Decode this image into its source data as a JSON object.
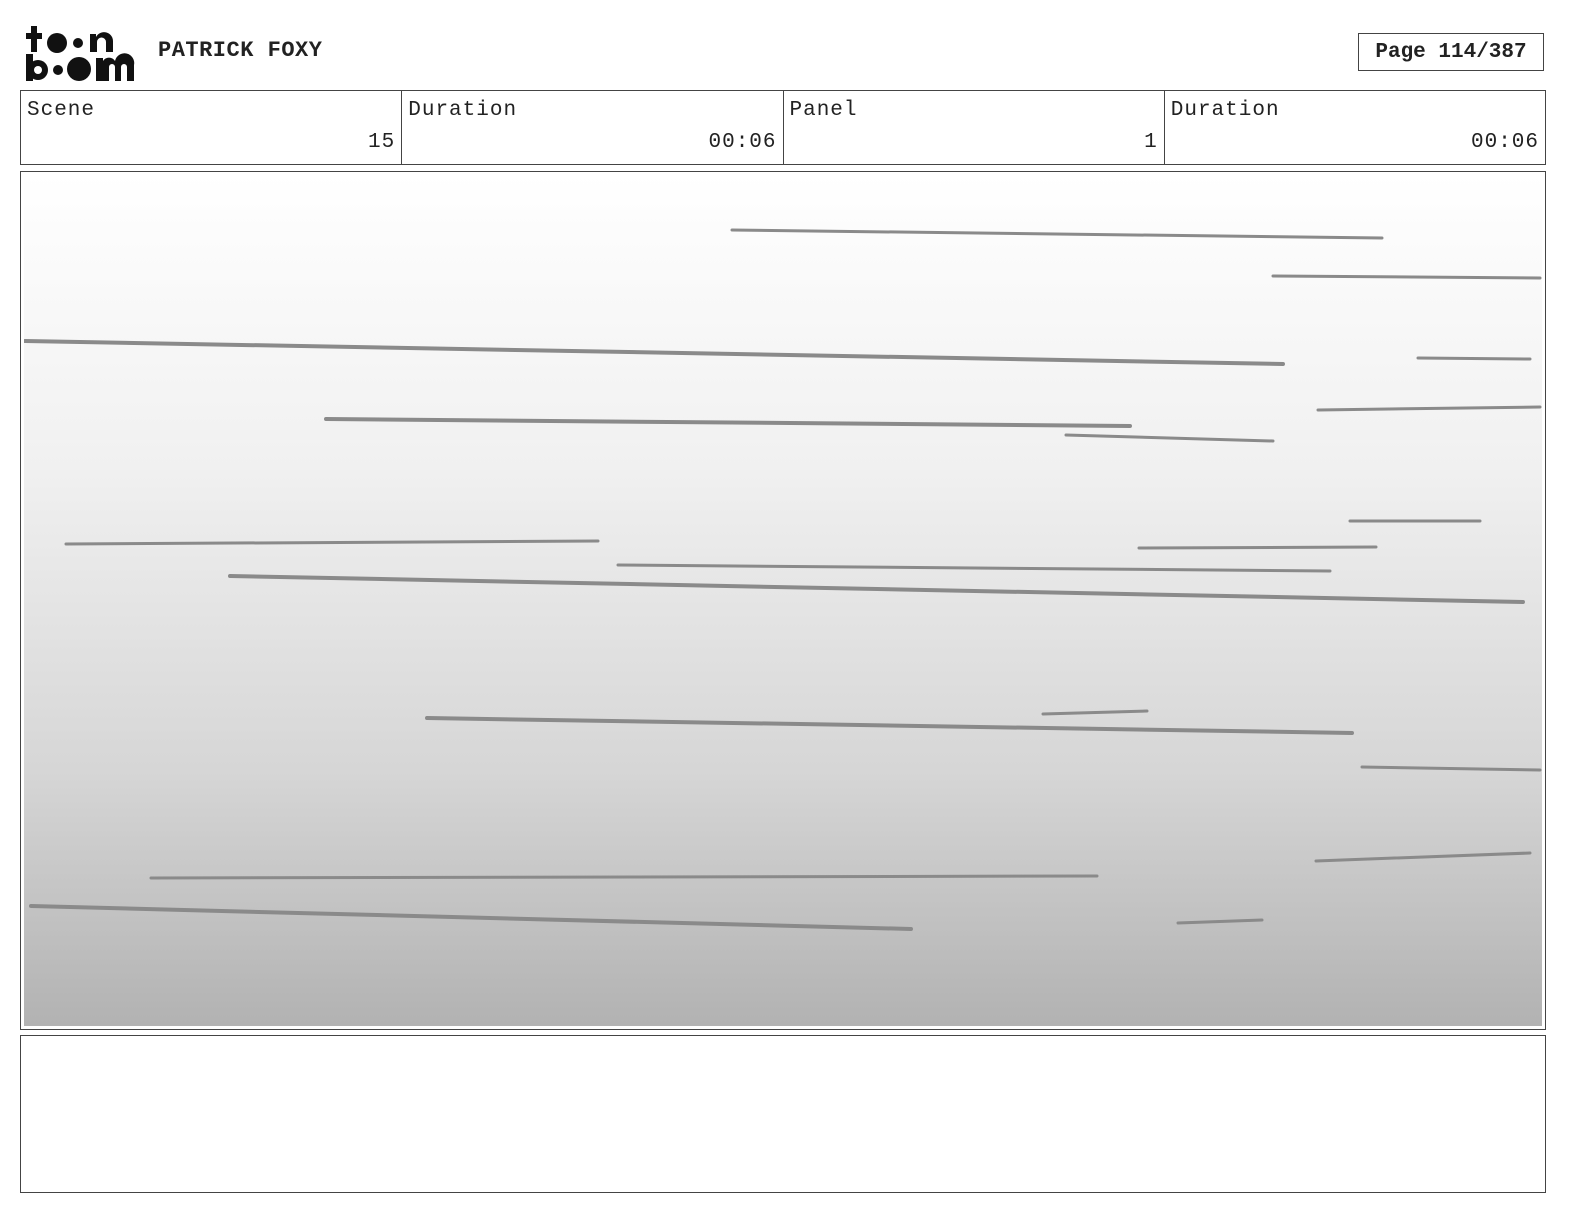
{
  "header": {
    "logo_text": "toon boom",
    "project_title": "PATRICK FOXY",
    "page_indicator": "Page 114/387"
  },
  "info": {
    "scene_label": "Scene",
    "scene_value": "15",
    "scene_duration_label": "Duration",
    "scene_duration_value": "00:06",
    "panel_label": "Panel",
    "panel_value": "1",
    "panel_duration_label": "Duration",
    "panel_duration_value": "00:06"
  },
  "notes": {
    "text": ""
  }
}
